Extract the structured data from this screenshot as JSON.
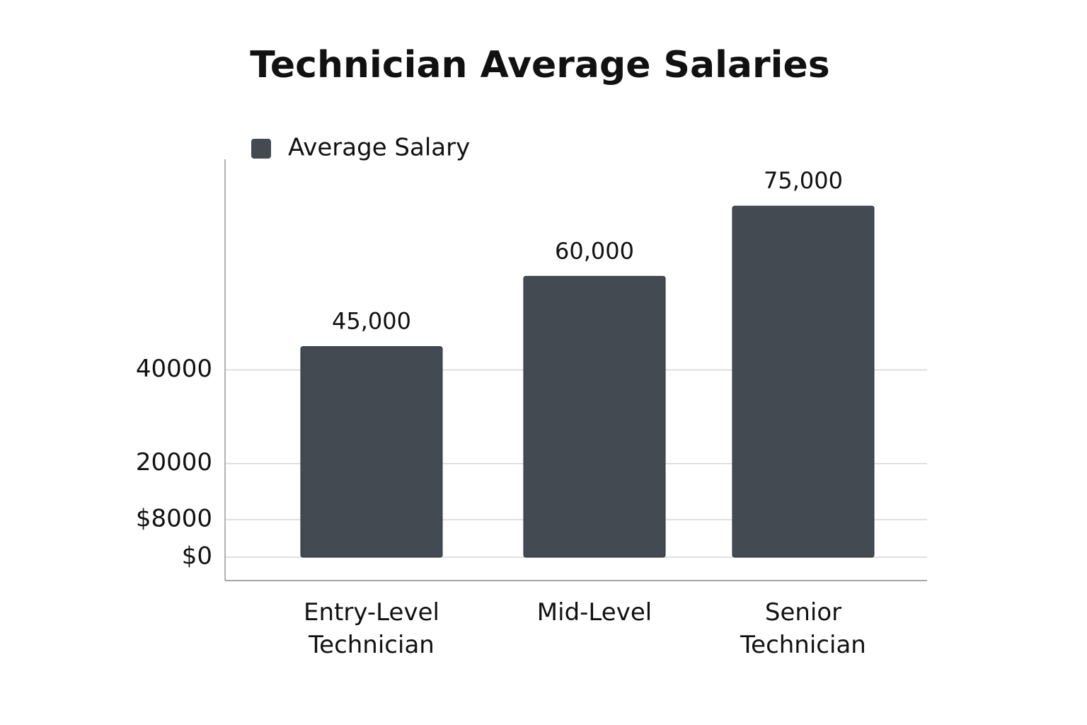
{
  "chart_data": {
    "type": "bar",
    "title": "Technician Average Salaries",
    "categories": [
      "Entry-Level Technician",
      "Mid-Level",
      "Senior Technician"
    ],
    "series": [
      {
        "name": "Average Salary",
        "color": "#434a52",
        "values": [
          45000,
          60000,
          75000
        ],
        "value_labels": [
          "45,000",
          "60,000",
          "75,000"
        ]
      }
    ],
    "ylim": [
      -5000,
      85000
    ],
    "yticks": [
      {
        "value": 0,
        "label": "$0"
      },
      20000,
      40000,
      {
        "value": 8000,
        "label": "$8000"
      }
    ],
    "grid": true,
    "legend": "top-left"
  }
}
